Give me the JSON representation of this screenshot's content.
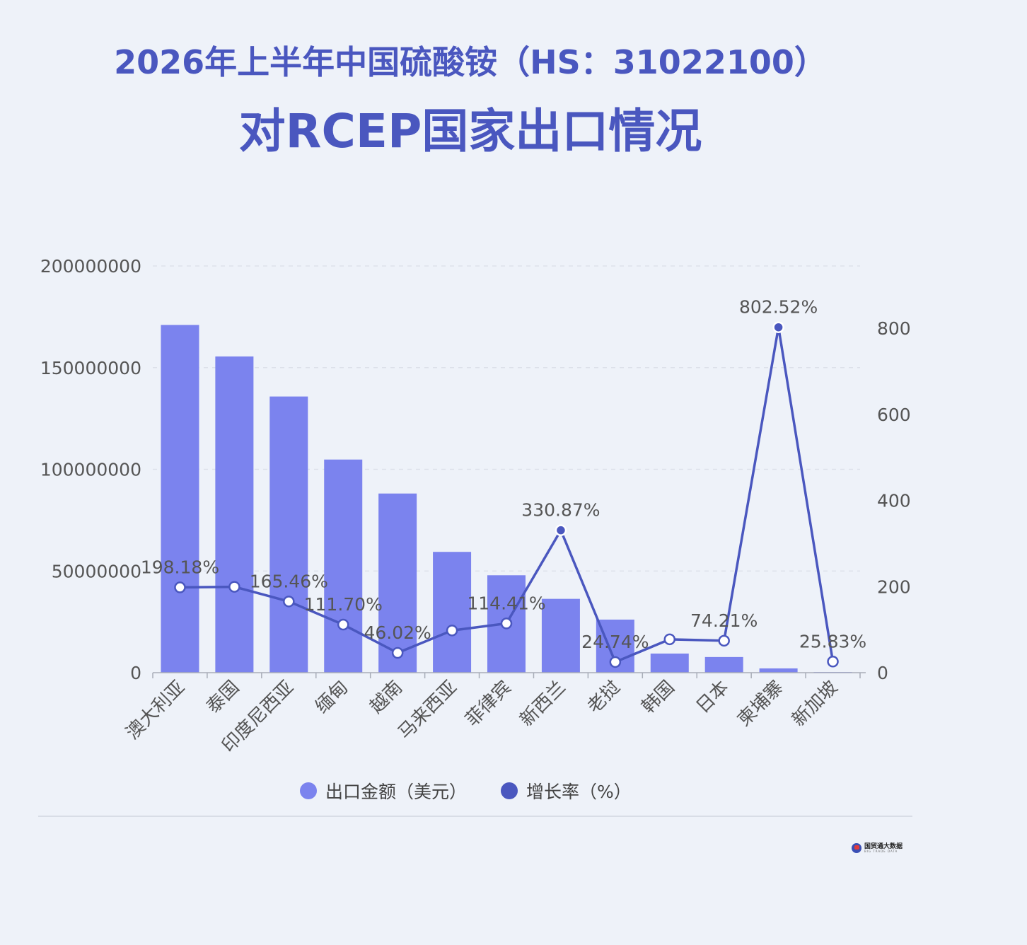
{
  "title_line1": "2026年上半年中国硫酸铵（HS：31022100）",
  "title_line2": "对RCEP国家出口情况",
  "colors": {
    "bar": "#7b83ee",
    "line": "#4a57bf",
    "grid": "#dde1ea",
    "axis_text": "#555555",
    "title": "#4a57bf"
  },
  "legend": {
    "bar_label": "出口金额（美元）",
    "line_label": "增长率（%）"
  },
  "logo": {
    "main": "国贸通大数据",
    "sub": "BIG TRADE DATA"
  },
  "chart_data": {
    "type": "bar",
    "categories": [
      "澳大利亚",
      "泰国",
      "印度尼西亚",
      "缅甸",
      "越南",
      "马来西亚",
      "菲律宾",
      "新西兰",
      "老挝",
      "韩国",
      "日本",
      "柬埔寨",
      "新加坡"
    ],
    "series": [
      {
        "name": "出口金额（美元）",
        "type": "bar",
        "axis": "left",
        "values": [
          171000000,
          155500000,
          135800000,
          104800000,
          88100000,
          59400000,
          47900000,
          36300000,
          26100000,
          9400000,
          7700000,
          2100000,
          300000
        ]
      },
      {
        "name": "增长率（%）",
        "type": "line",
        "axis": "right",
        "values": [
          198.18,
          199.5,
          165.46,
          111.7,
          46.02,
          98.0,
          114.41,
          330.87,
          24.74,
          77.5,
          74.21,
          802.52,
          25.83
        ],
        "labels": [
          "198.18%",
          "",
          "165.46%",
          "111.70%",
          "46.02%",
          "",
          "114.41%",
          "330.87%",
          "24.74%",
          "",
          "74.21%",
          "802.52%",
          "25.83%"
        ]
      }
    ],
    "y_left": {
      "min": 0,
      "max": 200000000,
      "ticks": [
        0,
        50000000,
        100000000,
        150000000,
        200000000
      ],
      "tick_labels": [
        "0",
        "50000000",
        "100000000",
        "150000000",
        "200000000"
      ]
    },
    "y_right": {
      "min": 0,
      "max": 945,
      "ticks": [
        0,
        200,
        400,
        600,
        800
      ],
      "tick_labels": [
        "0",
        "200",
        "400",
        "600",
        "800"
      ]
    },
    "grid": true,
    "legend_position": "bottom-center"
  }
}
